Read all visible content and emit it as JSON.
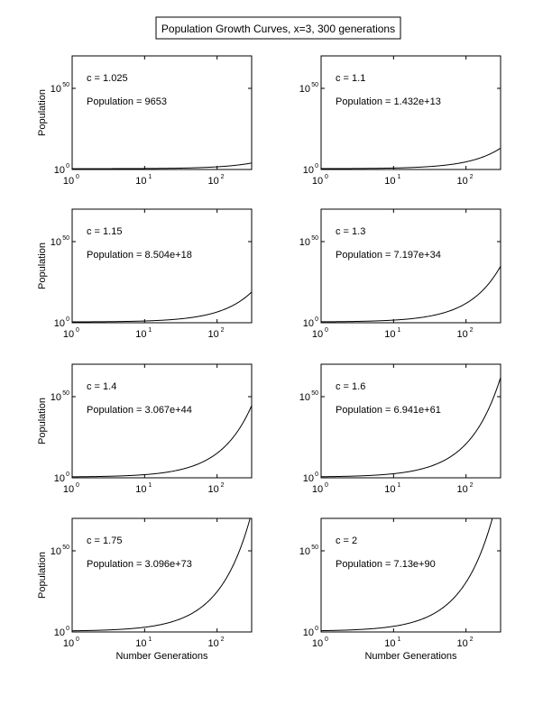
{
  "figure": {
    "title": "Population Growth Curves, x=3, 300 generations"
  },
  "chart_data": [
    {
      "type": "line",
      "annotation_c": "c = 1.025",
      "annotation_pop": "Population = 9653",
      "growth_rate": 1.025,
      "final_population": 9653,
      "ylabel": "Population",
      "xlabel": "",
      "xscale": "log",
      "yscale": "log",
      "xlim": [
        1,
        300
      ],
      "ylim": [
        1,
        1e+70
      ],
      "xticks": [
        1,
        10,
        100
      ],
      "xtick_labels": [
        [
          "10",
          "0"
        ],
        [
          "10",
          "1"
        ],
        [
          "10",
          "2"
        ]
      ],
      "yticks": [
        1,
        1e+50
      ],
      "ytick_labels": [
        [
          "10",
          "0"
        ],
        [
          "10",
          "50"
        ]
      ]
    },
    {
      "type": "line",
      "annotation_c": "c = 1.1",
      "annotation_pop": "Population = 1.432e+13",
      "growth_rate": 1.1,
      "final_population": 14320000000000.0,
      "ylabel": "",
      "xlabel": "",
      "xscale": "log",
      "yscale": "log",
      "xlim": [
        1,
        300
      ],
      "ylim": [
        1,
        1e+70
      ],
      "xticks": [
        1,
        10,
        100
      ],
      "xtick_labels": [
        [
          "10",
          "0"
        ],
        [
          "10",
          "1"
        ],
        [
          "10",
          "2"
        ]
      ],
      "yticks": [
        1,
        1e+50
      ],
      "ytick_labels": [
        [
          "10",
          "0"
        ],
        [
          "10",
          "50"
        ]
      ]
    },
    {
      "type": "line",
      "annotation_c": "c = 1.15",
      "annotation_pop": "Population = 8.504e+18",
      "growth_rate": 1.15,
      "final_population": 8.504e+18,
      "ylabel": "Population",
      "xlabel": "",
      "xscale": "log",
      "yscale": "log",
      "xlim": [
        1,
        300
      ],
      "ylim": [
        1,
        1e+70
      ],
      "xticks": [
        1,
        10,
        100
      ],
      "xtick_labels": [
        [
          "10",
          "0"
        ],
        [
          "10",
          "1"
        ],
        [
          "10",
          "2"
        ]
      ],
      "yticks": [
        1,
        1e+50
      ],
      "ytick_labels": [
        [
          "10",
          "0"
        ],
        [
          "10",
          "50"
        ]
      ]
    },
    {
      "type": "line",
      "annotation_c": "c = 1.3",
      "annotation_pop": "Population = 7.197e+34",
      "growth_rate": 1.3,
      "final_population": 7.197e+34,
      "ylabel": "",
      "xlabel": "",
      "xscale": "log",
      "yscale": "log",
      "xlim": [
        1,
        300
      ],
      "ylim": [
        1,
        1e+70
      ],
      "xticks": [
        1,
        10,
        100
      ],
      "xtick_labels": [
        [
          "10",
          "0"
        ],
        [
          "10",
          "1"
        ],
        [
          "10",
          "2"
        ]
      ],
      "yticks": [
        1,
        1e+50
      ],
      "ytick_labels": [
        [
          "10",
          "0"
        ],
        [
          "10",
          "50"
        ]
      ]
    },
    {
      "type": "line",
      "annotation_c": "c = 1.4",
      "annotation_pop": "Population = 3.067e+44",
      "growth_rate": 1.4,
      "final_population": 3.067e+44,
      "ylabel": "Population",
      "xlabel": "",
      "xscale": "log",
      "yscale": "log",
      "xlim": [
        1,
        300
      ],
      "ylim": [
        1,
        1e+70
      ],
      "xticks": [
        1,
        10,
        100
      ],
      "xtick_labels": [
        [
          "10",
          "0"
        ],
        [
          "10",
          "1"
        ],
        [
          "10",
          "2"
        ]
      ],
      "yticks": [
        1,
        1e+50
      ],
      "ytick_labels": [
        [
          "10",
          "0"
        ],
        [
          "10",
          "50"
        ]
      ]
    },
    {
      "type": "line",
      "annotation_c": "c = 1.6",
      "annotation_pop": "Population = 6.941e+61",
      "growth_rate": 1.6,
      "final_population": 6.941e+61,
      "ylabel": "",
      "xlabel": "",
      "xscale": "log",
      "yscale": "log",
      "xlim": [
        1,
        300
      ],
      "ylim": [
        1,
        1e+70
      ],
      "xticks": [
        1,
        10,
        100
      ],
      "xtick_labels": [
        [
          "10",
          "0"
        ],
        [
          "10",
          "1"
        ],
        [
          "10",
          "2"
        ]
      ],
      "yticks": [
        1,
        1e+50
      ],
      "ytick_labels": [
        [
          "10",
          "0"
        ],
        [
          "10",
          "50"
        ]
      ]
    },
    {
      "type": "line",
      "annotation_c": "c = 1.75",
      "annotation_pop": "Population = 3.096e+73",
      "growth_rate": 1.75,
      "final_population": 3.096e+73,
      "ylabel": "Population",
      "xlabel": "Number Generations",
      "xscale": "log",
      "yscale": "log",
      "xlim": [
        1,
        300
      ],
      "ylim": [
        1,
        1e+70
      ],
      "xticks": [
        1,
        10,
        100
      ],
      "xtick_labels": [
        [
          "10",
          "0"
        ],
        [
          "10",
          "1"
        ],
        [
          "10",
          "2"
        ]
      ],
      "yticks": [
        1,
        1e+50
      ],
      "ytick_labels": [
        [
          "10",
          "0"
        ],
        [
          "10",
          "50"
        ]
      ]
    },
    {
      "type": "line",
      "annotation_c": "c = 2",
      "annotation_pop": "Population = 7.13e+90",
      "growth_rate": 2,
      "final_population": 7.13e+90,
      "ylabel": "",
      "xlabel": "Number Generations",
      "xscale": "log",
      "yscale": "log",
      "xlim": [
        1,
        300
      ],
      "ylim": [
        1,
        1e+70
      ],
      "xticks": [
        1,
        10,
        100
      ],
      "xtick_labels": [
        [
          "10",
          "0"
        ],
        [
          "10",
          "1"
        ],
        [
          "10",
          "2"
        ]
      ],
      "yticks": [
        1,
        1e+50
      ],
      "ytick_labels": [
        [
          "10",
          "0"
        ],
        [
          "10",
          "50"
        ]
      ]
    }
  ]
}
